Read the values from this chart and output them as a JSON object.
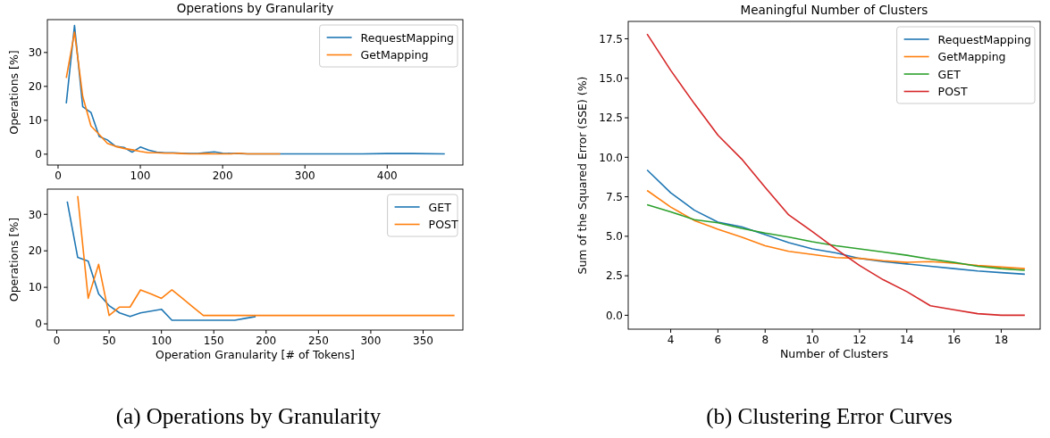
{
  "chart_data": [
    {
      "type": "line",
      "title": "Operations by Granularity",
      "ylabel": "Operations [%]",
      "xlim": [
        -13,
        492
      ],
      "xticks": [
        0,
        100,
        200,
        300,
        400
      ],
      "ylim": [
        -3.2,
        39.7
      ],
      "yticks": [
        0,
        10,
        20,
        30
      ],
      "legend": "top right",
      "grid": false,
      "series": [
        {
          "name": "RequestMapping",
          "color": "#1f77b4",
          "x": [
            10,
            20,
            30,
            40,
            50,
            60,
            70,
            80,
            90,
            100,
            110,
            120,
            130,
            140,
            150,
            160,
            170,
            180,
            190,
            200,
            210,
            220,
            230,
            270,
            320,
            370,
            400,
            430,
            470
          ],
          "values": [
            15,
            38,
            14,
            12.3,
            5.2,
            4.2,
            2.3,
            2,
            0.6,
            2.1,
            1.2,
            0.6,
            0.4,
            0.4,
            0.3,
            0.2,
            0.2,
            0.5,
            0.7,
            0.3,
            0.2,
            0.2,
            0.1,
            0.1,
            0.1,
            0.1,
            0.2,
            0.2,
            0.1
          ]
        },
        {
          "name": "GetMapping",
          "color": "#ff7f0e",
          "x": [
            10,
            20,
            30,
            40,
            50,
            60,
            70,
            80,
            90,
            100,
            110,
            120,
            130,
            140,
            150,
            160,
            170,
            180,
            190,
            200,
            210,
            220,
            230,
            240,
            250,
            260,
            270
          ],
          "values": [
            22.5,
            36,
            17,
            8.3,
            5.8,
            3.2,
            2.3,
            1.7,
            1.3,
            0.8,
            0.4,
            0.4,
            0.3,
            0.3,
            0.2,
            0.1,
            0.1,
            0.2,
            0.1,
            0.1,
            0.1,
            0.3,
            0.1,
            0.1,
            0.1,
            0.1,
            0.1
          ]
        }
      ]
    },
    {
      "type": "line",
      "xlabel": "Operation Granularity [# of Tokens]",
      "ylabel": "Operations [%]",
      "xlim": [
        -9,
        388
      ],
      "xticks": [
        0,
        50,
        100,
        150,
        200,
        250,
        300,
        350
      ],
      "ylim": [
        -1.7,
        36.9
      ],
      "yticks": [
        0,
        10,
        20,
        30
      ],
      "legend": "top right",
      "grid": false,
      "annotations": [
        "(a) Operations by Granularity"
      ],
      "series": [
        {
          "name": "GET",
          "color": "#1f77b4",
          "x": [
            10,
            20,
            30,
            40,
            50,
            60,
            70,
            80,
            90,
            100,
            110,
            120,
            130,
            140,
            150,
            160,
            170,
            180,
            190
          ],
          "values": [
            33.5,
            18.2,
            17.2,
            8.2,
            5,
            3,
            2,
            3,
            3.5,
            4,
            1,
            1,
            1,
            1,
            1,
            1,
            1,
            1.5,
            2
          ]
        },
        {
          "name": "POST",
          "color": "#ff7f0e",
          "x": [
            20,
            30,
            40,
            50,
            60,
            70,
            80,
            90,
            100,
            110,
            120,
            130,
            140,
            380
          ],
          "values": [
            35,
            7,
            16.3,
            2.3,
            4.6,
            4.6,
            9.3,
            8.2,
            7,
            9.3,
            7,
            4.6,
            2.3,
            2.3
          ]
        }
      ]
    },
    {
      "type": "line",
      "title": "Meaningful Number of Clusters",
      "xlabel": "Number of Clusters",
      "ylabel": "Sum of the Squared Error (SSE) (%)",
      "xlim": [
        2.2,
        19.65
      ],
      "xticks": [
        4,
        6,
        8,
        10,
        12,
        14,
        16,
        18
      ],
      "ylim": [
        -0.88,
        18.6
      ],
      "yticks": [
        {
          "value": 0,
          "label": "0.0"
        },
        2.5,
        {
          "value": 5,
          "label": "5.0"
        },
        7.5,
        {
          "value": 10,
          "label": "10.0"
        },
        12.5,
        {
          "value": 15,
          "label": "15.0"
        },
        17.5
      ],
      "legend": "top right",
      "grid": false,
      "annotations": [
        "(b) Clustering Error Curves"
      ],
      "x": [
        3,
        4,
        5,
        6,
        7,
        8,
        9,
        10,
        11,
        12,
        13,
        14,
        15,
        16,
        17,
        18,
        19
      ],
      "series": [
        {
          "name": "RequestMapping",
          "color": "#1f77b4",
          "values": [
            9.2,
            7.75,
            6.65,
            5.9,
            5.6,
            5.1,
            4.6,
            4.2,
            3.95,
            3.6,
            3.4,
            3.25,
            3.1,
            2.95,
            2.8,
            2.7,
            2.6
          ]
        },
        {
          "name": "GetMapping",
          "color": "#ff7f0e",
          "values": [
            7.9,
            6.85,
            6.0,
            5.45,
            4.95,
            4.4,
            4.05,
            3.85,
            3.65,
            3.6,
            3.45,
            3.35,
            3.4,
            3.3,
            3.15,
            3.05,
            2.95
          ]
        },
        {
          "name": "GET",
          "color": "#2ca02c",
          "values": [
            7.0,
            6.55,
            6.05,
            5.85,
            5.5,
            5.2,
            4.95,
            4.65,
            4.4,
            4.2,
            4.0,
            3.8,
            3.55,
            3.35,
            3.1,
            2.95,
            2.85
          ]
        },
        {
          "name": "POST",
          "color": "#d62728",
          "values": [
            17.8,
            15.5,
            13.4,
            11.4,
            9.9,
            8.1,
            6.35,
            5.3,
            4.2,
            3.15,
            2.25,
            1.5,
            0.6,
            0.35,
            0.1,
            0,
            0
          ]
        }
      ]
    }
  ]
}
